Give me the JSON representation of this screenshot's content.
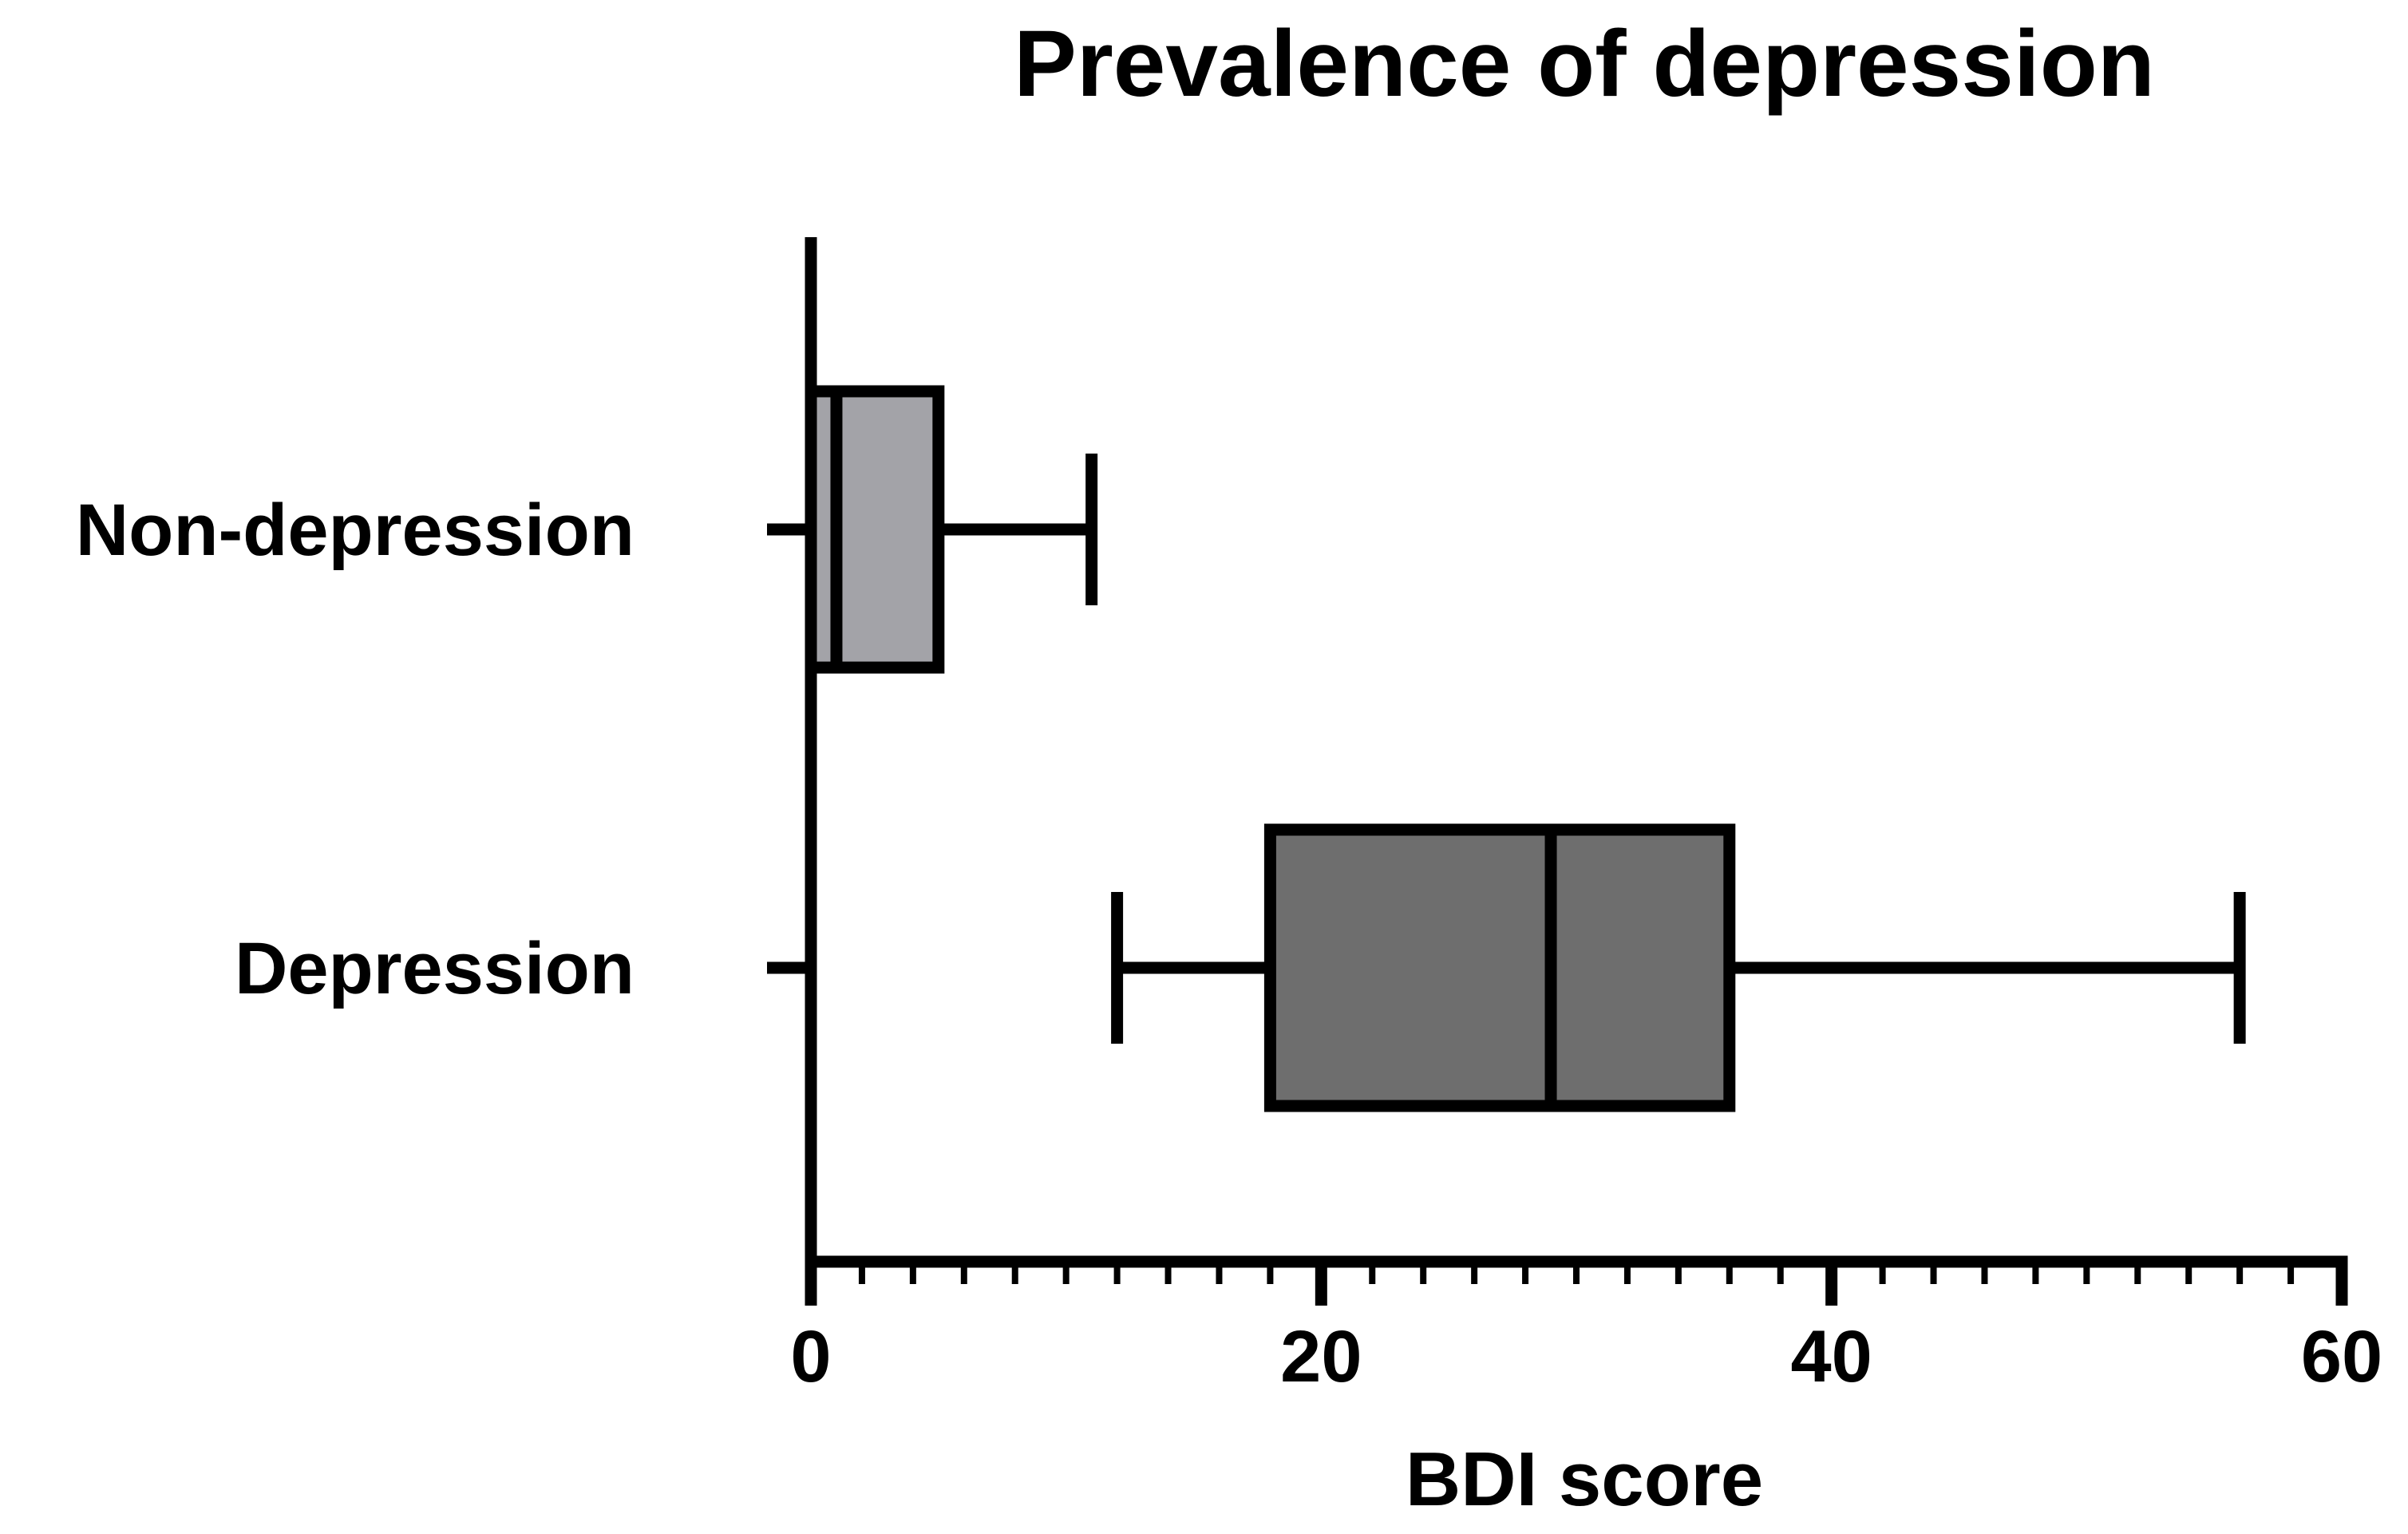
{
  "chart_data": {
    "type": "boxplot",
    "orientation": "horizontal",
    "title": "Prevalence of depression",
    "xlabel": "BDI score",
    "ylabel": "",
    "xlim": [
      0,
      60
    ],
    "x_ticks": [
      0,
      20,
      40,
      60
    ],
    "x_tick_labels": [
      "0",
      "20",
      "40",
      "60"
    ],
    "minor_tick_step": 2,
    "grid": false,
    "categories": [
      "Non-depression",
      "Depression"
    ],
    "series": [
      {
        "name": "Non-depression",
        "min": 0,
        "q1": 0,
        "median": 1,
        "q3": 5,
        "max": 11,
        "color": "#a3a3a8"
      },
      {
        "name": "Depression",
        "min": 12,
        "q1": 18,
        "median": 29,
        "q3": 36,
        "max": 56,
        "color": "#6e6e6e"
      }
    ]
  }
}
